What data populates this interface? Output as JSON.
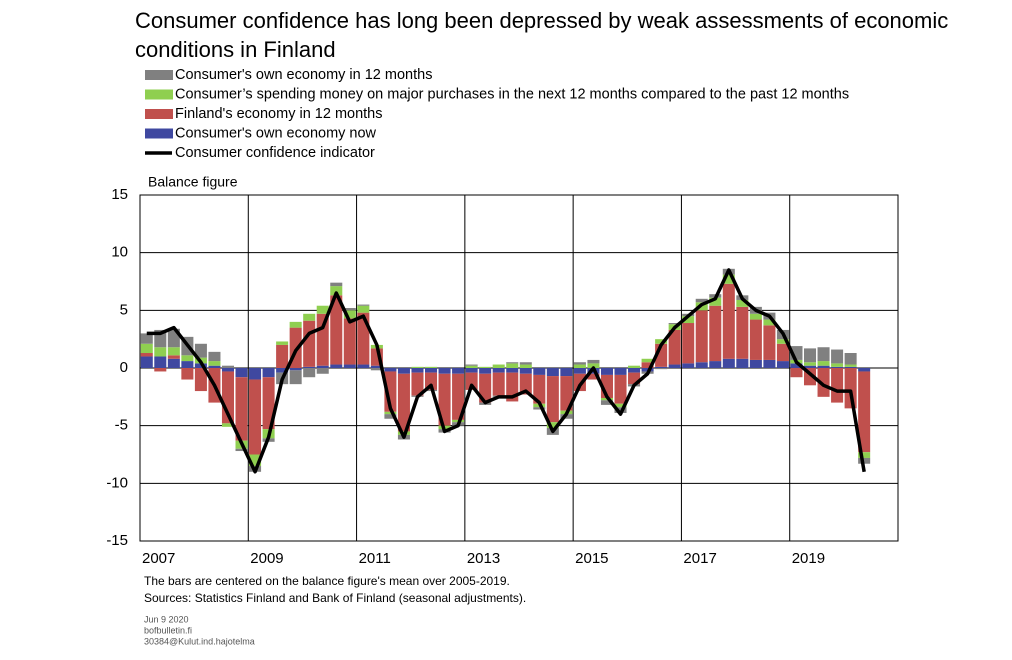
{
  "chart_data": {
    "type": "bar",
    "title": "Consumer confidence has long been depressed by weak assessments of economic conditions in Finland",
    "y_label": "Balance figure",
    "notes": [
      "The bars are centered on the balance figure's mean over 2005-2019.",
      "Sources: Statistics Finland and Bank of Finland (seasonal adjustments)."
    ],
    "footer": [
      "Jun 9 2020",
      "bofbulletin.fi",
      "30384@Kulut.ind.hajotelma"
    ],
    "xlim": [
      2007,
      2021
    ],
    "xticks": [
      2007,
      2009,
      2011,
      2013,
      2015,
      2017,
      2019
    ],
    "ylim": [
      -15,
      15
    ],
    "yticks": [
      -15,
      -10,
      -5,
      0,
      5,
      10,
      15
    ],
    "grid": true,
    "x": [
      2007.125,
      2007.375,
      2007.625,
      2007.875,
      2008.125,
      2008.375,
      2008.625,
      2008.875,
      2009.125,
      2009.375,
      2009.625,
      2009.875,
      2010.125,
      2010.375,
      2010.625,
      2010.875,
      2011.125,
      2011.375,
      2011.625,
      2011.875,
      2012.125,
      2012.375,
      2012.625,
      2012.875,
      2013.125,
      2013.375,
      2013.625,
      2013.875,
      2014.125,
      2014.375,
      2014.625,
      2014.875,
      2015.125,
      2015.375,
      2015.625,
      2015.875,
      2016.125,
      2016.375,
      2016.625,
      2016.875,
      2017.125,
      2017.375,
      2017.625,
      2017.875,
      2018.125,
      2018.375,
      2018.625,
      2018.875,
      2019.125,
      2019.375,
      2019.625,
      2019.875,
      2020.125,
      2020.375
    ],
    "series": [
      {
        "name": "Consumer's own economy in 12 months",
        "color": "#808080",
        "type": "bar",
        "values": [
          0.9,
          1.5,
          1.6,
          1.6,
          1.2,
          0.8,
          0.2,
          -0.2,
          -0.5,
          -0.3,
          -1,
          -1.2,
          -0.8,
          -0.5,
          0.3,
          0.2,
          0.1,
          -0.2,
          -0.4,
          -0.4,
          -0.1,
          -0.1,
          -0.3,
          -0.3,
          0.1,
          -0.2,
          -0.1,
          0.1,
          0.2,
          -0.2,
          -0.6,
          -0.4,
          0.2,
          0.3,
          -0.4,
          -0.5,
          -0.2,
          -0.2,
          -0.1,
          0.1,
          0.2,
          0.3,
          0.3,
          0.5,
          0.4,
          0.6,
          0.6,
          0.8,
          1.2,
          1.2,
          1.2,
          1.2,
          1,
          -0.5
        ]
      },
      {
        "name": "Consumer’s spending money on major purchases in the next 12 months compared to the past 12 months",
        "color": "#8fcf50",
        "type": "bar",
        "values": [
          0.8,
          0.8,
          0.7,
          0.5,
          0.5,
          0.4,
          -0.3,
          -0.7,
          -1,
          -0.8,
          0.3,
          0.5,
          0.6,
          0.7,
          0.8,
          0.7,
          0.6,
          0.3,
          -0.2,
          -0.3,
          0.1,
          0.1,
          -0.3,
          -0.2,
          0.2,
          0.1,
          0.3,
          0.4,
          0.3,
          -0.3,
          -0.5,
          -0.3,
          0.3,
          0.4,
          -0.2,
          -0.3,
          0.2,
          0.3,
          0.4,
          0.5,
          0.6,
          0.7,
          0.7,
          0.8,
          0.6,
          0.5,
          0.5,
          0.4,
          0.3,
          0.3,
          0.4,
          0.3,
          0.2,
          -0.5
        ]
      },
      {
        "name": "Finland's economy in 12 months",
        "color": "#c0504d",
        "type": "bar",
        "values": [
          0.3,
          -0.3,
          0.3,
          -1,
          -2,
          -3,
          -4.5,
          -5.5,
          -6.5,
          -4.5,
          2,
          3.5,
          4,
          4.5,
          6,
          4,
          4.5,
          1.5,
          -3.5,
          -5,
          -2,
          -1.5,
          -4.5,
          -4,
          -1.5,
          -2.5,
          -2,
          -2.5,
          -1.8,
          -2.5,
          -4,
          -3,
          -1.5,
          -0.5,
          -2,
          -2.5,
          -1,
          0.5,
          2,
          3,
          3.5,
          4.5,
          4.8,
          6.5,
          4.5,
          3.5,
          3,
          1.5,
          -0.8,
          -1.5,
          -2.5,
          -3,
          -3.5,
          -7
        ]
      },
      {
        "name": "Consumer's own economy now",
        "color": "#3f48a0",
        "type": "bar",
        "values": [
          1,
          1,
          0.8,
          0.6,
          0.4,
          0.2,
          -0.3,
          -0.8,
          -1,
          -0.8,
          -0.4,
          -0.2,
          0.1,
          0.2,
          0.3,
          0.3,
          0.3,
          0.2,
          -0.3,
          -0.5,
          -0.4,
          -0.4,
          -0.5,
          -0.5,
          -0.4,
          -0.5,
          -0.4,
          -0.4,
          -0.5,
          -0.6,
          -0.7,
          -0.7,
          -0.5,
          -0.5,
          -0.6,
          -0.6,
          -0.4,
          -0.3,
          0.1,
          0.3,
          0.4,
          0.5,
          0.6,
          0.8,
          0.8,
          0.7,
          0.7,
          0.6,
          0.4,
          0.2,
          0.2,
          0.1,
          0.1,
          -0.3
        ]
      },
      {
        "name": "Consumer confidence indicator",
        "color": "#000000",
        "type": "line",
        "values": [
          3,
          3,
          3.5,
          2,
          0.5,
          -1.5,
          -4,
          -6.5,
          -9,
          -6,
          -1,
          1.5,
          3,
          3.5,
          6.5,
          4,
          4.5,
          2,
          -3.5,
          -6,
          -2.5,
          -1.5,
          -5.5,
          -5,
          -1.5,
          -3,
          -2.5,
          -2.5,
          -2,
          -3,
          -5.5,
          -4,
          -1.5,
          0,
          -2.5,
          -4,
          -1.5,
          -0.5,
          2,
          3.5,
          4.5,
          5.5,
          6,
          8.5,
          6,
          5,
          4.5,
          3,
          0.5,
          -0.5,
          -1.5,
          -2,
          -2,
          -9
        ]
      }
    ]
  }
}
